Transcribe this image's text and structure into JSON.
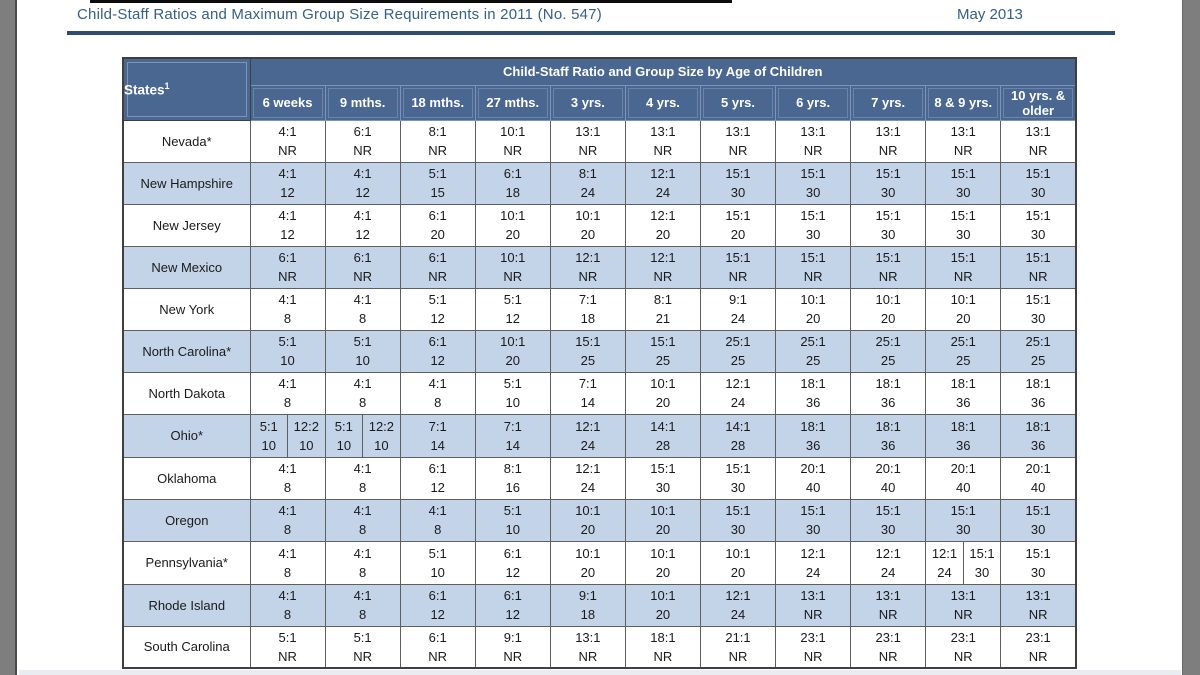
{
  "page": {
    "title": "Child-Staff Ratios and Maximum Group Size Requirements in 2011 (No. 547)",
    "date": "May 2013"
  },
  "table": {
    "states_header": "States",
    "states_footnote": "1",
    "span_header": "Child-Staff Ratio and Group Size by Age of Children",
    "columns": [
      "6 weeks",
      "9 mths.",
      "18 mths.",
      "27 mths.",
      "3 yrs.",
      "4 yrs.",
      "5 yrs.",
      "6 yrs.",
      "7 yrs.",
      "8 & 9 yrs.",
      "10 yrs. & older"
    ],
    "rows": [
      {
        "state": "Nevada*",
        "cells": [
          [
            "4:1",
            "NR"
          ],
          [
            "6:1",
            "NR"
          ],
          [
            "8:1",
            "NR"
          ],
          [
            "10:1",
            "NR"
          ],
          [
            "13:1",
            "NR"
          ],
          [
            "13:1",
            "NR"
          ],
          [
            "13:1",
            "NR"
          ],
          [
            "13:1",
            "NR"
          ],
          [
            "13:1",
            "NR"
          ],
          [
            "13:1",
            "NR"
          ],
          [
            "13:1",
            "NR"
          ]
        ]
      },
      {
        "state": "New Hampshire",
        "cells": [
          [
            "4:1",
            "12"
          ],
          [
            "4:1",
            "12"
          ],
          [
            "5:1",
            "15"
          ],
          [
            "6:1",
            "18"
          ],
          [
            "8:1",
            "24"
          ],
          [
            "12:1",
            "24"
          ],
          [
            "15:1",
            "30"
          ],
          [
            "15:1",
            "30"
          ],
          [
            "15:1",
            "30"
          ],
          [
            "15:1",
            "30"
          ],
          [
            "15:1",
            "30"
          ]
        ]
      },
      {
        "state": "New Jersey",
        "cells": [
          [
            "4:1",
            "12"
          ],
          [
            "4:1",
            "12"
          ],
          [
            "6:1",
            "20"
          ],
          [
            "10:1",
            "20"
          ],
          [
            "10:1",
            "20"
          ],
          [
            "12:1",
            "20"
          ],
          [
            "15:1",
            "20"
          ],
          [
            "15:1",
            "30"
          ],
          [
            "15:1",
            "30"
          ],
          [
            "15:1",
            "30"
          ],
          [
            "15:1",
            "30"
          ]
        ]
      },
      {
        "state": "New Mexico",
        "cells": [
          [
            "6:1",
            "NR"
          ],
          [
            "6:1",
            "NR"
          ],
          [
            "6:1",
            "NR"
          ],
          [
            "10:1",
            "NR"
          ],
          [
            "12:1",
            "NR"
          ],
          [
            "12:1",
            "NR"
          ],
          [
            "15:1",
            "NR"
          ],
          [
            "15:1",
            "NR"
          ],
          [
            "15:1",
            "NR"
          ],
          [
            "15:1",
            "NR"
          ],
          [
            "15:1",
            "NR"
          ]
        ]
      },
      {
        "state": "New York",
        "cells": [
          [
            "4:1",
            "8"
          ],
          [
            "4:1",
            "8"
          ],
          [
            "5:1",
            "12"
          ],
          [
            "5:1",
            "12"
          ],
          [
            "7:1",
            "18"
          ],
          [
            "8:1",
            "21"
          ],
          [
            "9:1",
            "24"
          ],
          [
            "10:1",
            "20"
          ],
          [
            "10:1",
            "20"
          ],
          [
            "10:1",
            "20"
          ],
          [
            "15:1",
            "30"
          ]
        ]
      },
      {
        "state": "North Carolina*",
        "cells": [
          [
            "5:1",
            "10"
          ],
          [
            "5:1",
            "10"
          ],
          [
            "6:1",
            "12"
          ],
          [
            "10:1",
            "20"
          ],
          [
            "15:1",
            "25"
          ],
          [
            "15:1",
            "25"
          ],
          [
            "25:1",
            "25"
          ],
          [
            "25:1",
            "25"
          ],
          [
            "25:1",
            "25"
          ],
          [
            "25:1",
            "25"
          ],
          [
            "25:1",
            "25"
          ]
        ]
      },
      {
        "state": "North Dakota",
        "cells": [
          [
            "4:1",
            "8"
          ],
          [
            "4:1",
            "8"
          ],
          [
            "4:1",
            "8"
          ],
          [
            "5:1",
            "10"
          ],
          [
            "7:1",
            "14"
          ],
          [
            "10:1",
            "20"
          ],
          [
            "12:1",
            "24"
          ],
          [
            "18:1",
            "36"
          ],
          [
            "18:1",
            "36"
          ],
          [
            "18:1",
            "36"
          ],
          [
            "18:1",
            "36"
          ]
        ]
      },
      {
        "state": "Ohio*",
        "cells": [
          {
            "split": [
              [
                "5:1",
                "10"
              ],
              [
                "12:2",
                "10"
              ]
            ]
          },
          {
            "split": [
              [
                "5:1",
                "10"
              ],
              [
                "12:2",
                "10"
              ]
            ]
          },
          [
            "7:1",
            "14"
          ],
          [
            "7:1",
            "14"
          ],
          [
            "12:1",
            "24"
          ],
          [
            "14:1",
            "28"
          ],
          [
            "14:1",
            "28"
          ],
          [
            "18:1",
            "36"
          ],
          [
            "18:1",
            "36"
          ],
          [
            "18:1",
            "36"
          ],
          [
            "18:1",
            "36"
          ]
        ]
      },
      {
        "state": "Oklahoma",
        "cells": [
          [
            "4:1",
            "8"
          ],
          [
            "4:1",
            "8"
          ],
          [
            "6:1",
            "12"
          ],
          [
            "8:1",
            "16"
          ],
          [
            "12:1",
            "24"
          ],
          [
            "15:1",
            "30"
          ],
          [
            "15:1",
            "30"
          ],
          [
            "20:1",
            "40"
          ],
          [
            "20:1",
            "40"
          ],
          [
            "20:1",
            "40"
          ],
          [
            "20:1",
            "40"
          ]
        ]
      },
      {
        "state": "Oregon",
        "cells": [
          [
            "4:1",
            "8"
          ],
          [
            "4:1",
            "8"
          ],
          [
            "4:1",
            "8"
          ],
          [
            "5:1",
            "10"
          ],
          [
            "10:1",
            "20"
          ],
          [
            "10:1",
            "20"
          ],
          [
            "15:1",
            "30"
          ],
          [
            "15:1",
            "30"
          ],
          [
            "15:1",
            "30"
          ],
          [
            "15:1",
            "30"
          ],
          [
            "15:1",
            "30"
          ]
        ]
      },
      {
        "state": "Pennsylvania*",
        "cells": [
          [
            "4:1",
            "8"
          ],
          [
            "4:1",
            "8"
          ],
          [
            "5:1",
            "10"
          ],
          [
            "6:1",
            "12"
          ],
          [
            "10:1",
            "20"
          ],
          [
            "10:1",
            "20"
          ],
          [
            "10:1",
            "20"
          ],
          [
            "12:1",
            "24"
          ],
          [
            "12:1",
            "24"
          ],
          {
            "split": [
              [
                "12:1",
                "24"
              ],
              [
                "15:1",
                "30"
              ]
            ]
          },
          [
            "15:1",
            "30"
          ]
        ]
      },
      {
        "state": "Rhode Island",
        "cells": [
          [
            "4:1",
            "8"
          ],
          [
            "4:1",
            "8"
          ],
          [
            "6:1",
            "12"
          ],
          [
            "6:1",
            "12"
          ],
          [
            "9:1",
            "18"
          ],
          [
            "10:1",
            "20"
          ],
          [
            "12:1",
            "24"
          ],
          [
            "13:1",
            "NR"
          ],
          [
            "13:1",
            "NR"
          ],
          [
            "13:1",
            "NR"
          ],
          [
            "13:1",
            "NR"
          ]
        ]
      },
      {
        "state": "South Carolina",
        "cells": [
          [
            "5:1",
            "NR"
          ],
          [
            "5:1",
            "NR"
          ],
          [
            "6:1",
            "NR"
          ],
          [
            "9:1",
            "NR"
          ],
          [
            "13:1",
            "NR"
          ],
          [
            "18:1",
            "NR"
          ],
          [
            "21:1",
            "NR"
          ],
          [
            "23:1",
            "NR"
          ],
          [
            "23:1",
            "NR"
          ],
          [
            "23:1",
            "NR"
          ],
          [
            "23:1",
            "NR"
          ]
        ]
      }
    ]
  },
  "colors": {
    "title_blue": "#35608c",
    "rule_navy": "#2d4d75",
    "header_blue": "#4a6792",
    "light_row": "#c3d3e8",
    "edge_gray": "#7e7e7e"
  }
}
